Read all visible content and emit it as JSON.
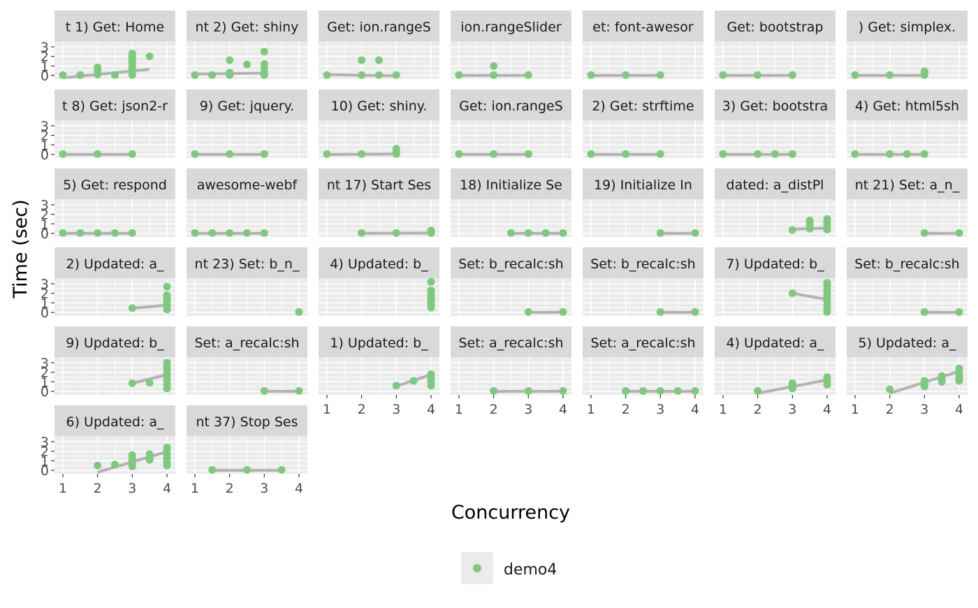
{
  "chart_data": {
    "type": "scatter",
    "xlabel": "Concurrency",
    "ylabel": "Time (sec)",
    "x_ticks": [
      1,
      2,
      3,
      4
    ],
    "y_ticks": [
      0,
      1,
      2,
      3
    ],
    "xlim": [
      1,
      4
    ],
    "ylim": [
      0,
      3
    ],
    "legend": {
      "placement": "bottom",
      "entries": [
        {
          "name": "demo4",
          "color": "#7FC97F"
        }
      ]
    },
    "colors": {
      "point": "#7FC97F",
      "trend": "#B3B3B3",
      "panel_bg": "#EBEBEB",
      "strip_bg": "#D9D9D9"
    },
    "panels": [
      {
        "title": "t 1) Get: Home",
        "points": [
          [
            1,
            0.05
          ],
          [
            1.5,
            0.05
          ],
          [
            2,
            0.1
          ],
          [
            2,
            0.5
          ],
          [
            2,
            0.85
          ],
          [
            2.5,
            0.05
          ],
          [
            3,
            0.05
          ],
          [
            3,
            0.3
          ],
          [
            3,
            0.6
          ],
          [
            3,
            0.9
          ],
          [
            3,
            1.2
          ],
          [
            3,
            1.5
          ],
          [
            3,
            1.8
          ],
          [
            3,
            2.0
          ],
          [
            3,
            2.3
          ],
          [
            3.5,
            2.0
          ]
        ],
        "trend": [
          [
            1,
            -0.25
          ],
          [
            3.5,
            0.65
          ]
        ]
      },
      {
        "title": "nt 2) Get: shiny",
        "points": [
          [
            1,
            0.05
          ],
          [
            1.5,
            0.05
          ],
          [
            2,
            0.05
          ],
          [
            2,
            0.3
          ],
          [
            2,
            1.6
          ],
          [
            2.5,
            1.15
          ],
          [
            3,
            0.05
          ],
          [
            3,
            0.3
          ],
          [
            3,
            0.8
          ],
          [
            3,
            1.2
          ],
          [
            3,
            2.5
          ]
        ],
        "trend": [
          [
            1,
            0.15
          ],
          [
            3,
            0.25
          ]
        ]
      },
      {
        "title": "Get: ion.rangeS",
        "points": [
          [
            1,
            0.05
          ],
          [
            2,
            1.6
          ],
          [
            2,
            0.05
          ],
          [
            2.5,
            1.6
          ],
          [
            2.5,
            0.05
          ],
          [
            3,
            0.05
          ]
        ],
        "trend": [
          [
            1,
            0.1
          ],
          [
            3,
            -0.05
          ]
        ]
      },
      {
        "title": "ion.rangeSlider",
        "points": [
          [
            1,
            0.05
          ],
          [
            2,
            0.05
          ],
          [
            2,
            1.0
          ],
          [
            3,
            0.05
          ]
        ],
        "trend": [
          [
            1,
            0
          ],
          [
            3,
            0
          ]
        ]
      },
      {
        "title": "et: font-awesor",
        "points": [
          [
            1,
            0.05
          ],
          [
            2,
            0.05
          ],
          [
            3,
            0.05
          ]
        ],
        "trend": [
          [
            1,
            0
          ],
          [
            3,
            0
          ]
        ]
      },
      {
        "title": "Get: bootstrap",
        "points": [
          [
            1,
            0.05
          ],
          [
            2,
            0.05
          ],
          [
            3,
            0.05
          ]
        ],
        "trend": [
          [
            1,
            0
          ],
          [
            3,
            0
          ]
        ]
      },
      {
        "title": ") Get: simplex.",
        "points": [
          [
            1,
            0.05
          ],
          [
            2,
            0.05
          ],
          [
            3,
            0.05
          ],
          [
            3,
            0.25
          ],
          [
            3,
            0.45
          ]
        ],
        "trend": [
          [
            1,
            0
          ],
          [
            3,
            0
          ]
        ]
      },
      {
        "title": "t 8) Get: json2-r",
        "points": [
          [
            1,
            0.05
          ],
          [
            2,
            0.05
          ],
          [
            3,
            0.05
          ]
        ],
        "trend": [
          [
            1,
            0
          ],
          [
            3,
            0
          ]
        ]
      },
      {
        "title": "9) Get: jquery.",
        "points": [
          [
            1,
            0.05
          ],
          [
            2,
            0.05
          ],
          [
            3,
            0.05
          ]
        ],
        "trend": [
          [
            1,
            0
          ],
          [
            3,
            0
          ]
        ]
      },
      {
        "title": "10) Get: shiny.",
        "points": [
          [
            1,
            0.05
          ],
          [
            2,
            0.05
          ],
          [
            3,
            0.05
          ],
          [
            3,
            0.3
          ],
          [
            3,
            0.6
          ]
        ],
        "trend": [
          [
            1,
            0
          ],
          [
            3,
            0.05
          ]
        ]
      },
      {
        "title": "Get: ion.rangeS",
        "points": [
          [
            1,
            0.05
          ],
          [
            2,
            0.05
          ],
          [
            3,
            0.05
          ]
        ],
        "trend": [
          [
            1,
            0
          ],
          [
            3,
            0
          ]
        ]
      },
      {
        "title": "2) Get: strftime",
        "points": [
          [
            1,
            0.05
          ],
          [
            2,
            0.05
          ],
          [
            3,
            0.05
          ]
        ],
        "trend": [
          [
            1,
            0
          ],
          [
            3,
            0
          ]
        ]
      },
      {
        "title": "3) Get: bootstra",
        "points": [
          [
            1,
            0.05
          ],
          [
            2,
            0.05
          ],
          [
            2.5,
            0.05
          ],
          [
            3,
            0.05
          ]
        ],
        "trend": [
          [
            1,
            0
          ],
          [
            3,
            0
          ]
        ]
      },
      {
        "title": "4) Get: html5sh",
        "points": [
          [
            1,
            0.05
          ],
          [
            2,
            0.05
          ],
          [
            2.5,
            0.05
          ],
          [
            3,
            0.05
          ]
        ],
        "trend": [
          [
            1,
            0
          ],
          [
            3,
            0
          ]
        ]
      },
      {
        "title": "5) Get: respond",
        "points": [
          [
            1,
            0.05
          ],
          [
            1.5,
            0.05
          ],
          [
            2,
            0.05
          ],
          [
            2.5,
            0.05
          ],
          [
            3,
            0.05
          ]
        ],
        "trend": [
          [
            1,
            0
          ],
          [
            3,
            0
          ]
        ]
      },
      {
        "title": "awesome-webf",
        "points": [
          [
            1,
            0.05
          ],
          [
            1.5,
            0.05
          ],
          [
            2,
            0.05
          ],
          [
            2.5,
            0.05
          ],
          [
            3,
            0.05
          ]
        ],
        "trend": [
          [
            1,
            0
          ],
          [
            3,
            0
          ]
        ]
      },
      {
        "title": "nt 17) Start Ses",
        "points": [
          [
            2,
            0.05
          ],
          [
            3,
            0.05
          ],
          [
            4,
            0.05
          ],
          [
            4,
            0.3
          ]
        ],
        "trend": [
          [
            2,
            0
          ],
          [
            4,
            0.05
          ]
        ]
      },
      {
        "title": "18) Initialize Se",
        "points": [
          [
            2.5,
            0.05
          ],
          [
            3,
            0.05
          ],
          [
            3.5,
            0.05
          ],
          [
            4,
            0.05
          ]
        ],
        "trend": [
          [
            2.5,
            0
          ],
          [
            4,
            0
          ]
        ]
      },
      {
        "title": "19) Initialize In",
        "points": [
          [
            3,
            0.05
          ],
          [
            4,
            0.05
          ]
        ],
        "trend": [
          [
            3,
            0
          ],
          [
            4,
            0
          ]
        ]
      },
      {
        "title": "dated: a_distPl",
        "points": [
          [
            3,
            0.35
          ],
          [
            3.5,
            0.5
          ],
          [
            3.5,
            0.8
          ],
          [
            3.5,
            1.1
          ],
          [
            3.5,
            1.35
          ],
          [
            4,
            0.4
          ],
          [
            4,
            0.8
          ],
          [
            4,
            1.15
          ],
          [
            4,
            1.5
          ]
        ],
        "trend": [
          [
            3,
            0.45
          ],
          [
            4,
            0.55
          ]
        ]
      },
      {
        "title": "nt 21) Set: a_n_",
        "points": [
          [
            3,
            0.05
          ],
          [
            4,
            0.05
          ]
        ],
        "trend": [
          [
            3,
            0
          ],
          [
            4,
            0
          ]
        ]
      },
      {
        "title": "2) Updated: a_",
        "points": [
          [
            3,
            0.45
          ],
          [
            4,
            0.3
          ],
          [
            4,
            0.6
          ],
          [
            4,
            0.9
          ],
          [
            4,
            1.2
          ],
          [
            4,
            1.5
          ],
          [
            4,
            1.8
          ],
          [
            4,
            2.7
          ]
        ],
        "trend": [
          [
            3,
            0.45
          ],
          [
            4,
            0.75
          ]
        ]
      },
      {
        "title": "nt 23) Set: b_n_",
        "points": [
          [
            4,
            0.05
          ]
        ],
        "trend": []
      },
      {
        "title": "4) Updated: b_",
        "points": [
          [
            4,
            0.5
          ],
          [
            4,
            0.8
          ],
          [
            4,
            1.1
          ],
          [
            4,
            1.4
          ],
          [
            4,
            1.7
          ],
          [
            4,
            2.0
          ],
          [
            4,
            2.3
          ],
          [
            4,
            3.2
          ]
        ],
        "trend": []
      },
      {
        "title": "Set: b_recalc:sh",
        "points": [
          [
            3,
            0.05
          ],
          [
            4,
            0.05
          ]
        ],
        "trend": [
          [
            3,
            0
          ],
          [
            4,
            0
          ]
        ]
      },
      {
        "title": "Set: b_recalc:sh",
        "points": [
          [
            3,
            0.05
          ],
          [
            4,
            0.05
          ]
        ],
        "trend": [
          [
            3,
            0
          ],
          [
            4,
            0
          ]
        ]
      },
      {
        "title": "7) Updated: b_",
        "points": [
          [
            3,
            2.0
          ],
          [
            4,
            0.05
          ],
          [
            4,
            0.4
          ],
          [
            4,
            0.8
          ],
          [
            4,
            1.2
          ],
          [
            4,
            1.6
          ],
          [
            4,
            2.0
          ],
          [
            4,
            2.4
          ],
          [
            4,
            2.8
          ],
          [
            4,
            3.1
          ]
        ],
        "trend": [
          [
            3,
            2.0
          ],
          [
            4,
            1.35
          ]
        ]
      },
      {
        "title": "Set: b_recalc:sh",
        "points": [
          [
            3,
            0.05
          ],
          [
            4,
            0.05
          ]
        ],
        "trend": [
          [
            3,
            0
          ],
          [
            4,
            0
          ]
        ]
      },
      {
        "title": "9) Updated: b_",
        "points": [
          [
            3,
            0.85
          ],
          [
            3.5,
            0.9
          ],
          [
            4,
            0.3
          ],
          [
            4,
            0.7
          ],
          [
            4,
            1.1
          ],
          [
            4,
            1.5
          ],
          [
            4,
            1.9
          ],
          [
            4,
            2.3
          ],
          [
            4,
            2.6
          ],
          [
            4,
            3.0
          ]
        ],
        "trend": [
          [
            3,
            0.85
          ],
          [
            4,
            1.75
          ]
        ]
      },
      {
        "title": "Set: a_recalc:sh",
        "points": [
          [
            3,
            0.05
          ],
          [
            4,
            0.05
          ]
        ],
        "trend": [
          [
            3,
            0
          ],
          [
            4,
            0
          ]
        ]
      },
      {
        "title": "1) Updated: b_",
        "points": [
          [
            3,
            0.6
          ],
          [
            3.5,
            1.1
          ],
          [
            4,
            0.6
          ],
          [
            4,
            1.0
          ],
          [
            4,
            1.4
          ],
          [
            4,
            1.8
          ]
        ],
        "trend": [
          [
            3,
            0.55
          ],
          [
            4,
            1.75
          ]
        ]
      },
      {
        "title": "Set: a_recalc:sh",
        "points": [
          [
            2,
            0.05
          ],
          [
            3,
            0.05
          ],
          [
            4,
            0.05
          ]
        ],
        "trend": [
          [
            2,
            0
          ],
          [
            4,
            0
          ]
        ]
      },
      {
        "title": "Set: a_recalc:sh",
        "points": [
          [
            2,
            0.05
          ],
          [
            2.5,
            0.05
          ],
          [
            3,
            0.05
          ],
          [
            3.5,
            0.05
          ],
          [
            4,
            0.05
          ]
        ],
        "trend": [
          [
            2,
            0
          ],
          [
            4,
            0
          ]
        ]
      },
      {
        "title": "4) Updated: a_",
        "points": [
          [
            2,
            0.05
          ],
          [
            3,
            0.3
          ],
          [
            3,
            0.6
          ],
          [
            3,
            0.85
          ],
          [
            4,
            0.7
          ],
          [
            4,
            1.1
          ],
          [
            4,
            1.5
          ]
        ],
        "trend": [
          [
            2,
            -0.2
          ],
          [
            4,
            1.2
          ]
        ]
      },
      {
        "title": "5) Updated: a_",
        "points": [
          [
            2,
            0.2
          ],
          [
            3,
            0.5
          ],
          [
            3,
            0.8
          ],
          [
            3,
            1.1
          ],
          [
            3.5,
            1.0
          ],
          [
            3.5,
            1.3
          ],
          [
            3.5,
            1.6
          ],
          [
            4,
            1.1
          ],
          [
            4,
            1.4
          ],
          [
            4,
            1.7
          ],
          [
            4,
            2.0
          ],
          [
            4,
            2.4
          ]
        ],
        "trend": [
          [
            2,
            -0.2
          ],
          [
            4,
            2.1
          ]
        ]
      },
      {
        "title": "6) Updated: a_",
        "points": [
          [
            2,
            0.5
          ],
          [
            2.5,
            0.6
          ],
          [
            3,
            0.4
          ],
          [
            3,
            0.7
          ],
          [
            3,
            1.0
          ],
          [
            3,
            1.3
          ],
          [
            3,
            1.6
          ],
          [
            3.5,
            1.1
          ],
          [
            3.5,
            1.4
          ],
          [
            3.5,
            1.7
          ],
          [
            4,
            0.5
          ],
          [
            4,
            0.9
          ],
          [
            4,
            1.3
          ],
          [
            4,
            1.7
          ],
          [
            4,
            2.1
          ],
          [
            4,
            2.4
          ]
        ],
        "trend": [
          [
            2,
            -0.2
          ],
          [
            4,
            1.95
          ]
        ]
      },
      {
        "title": "nt 37) Stop Ses",
        "points": [
          [
            1.5,
            0.05
          ],
          [
            2.5,
            0.05
          ],
          [
            3.5,
            0.05
          ]
        ],
        "trend": [
          [
            1.5,
            0
          ],
          [
            3.5,
            0
          ]
        ]
      }
    ]
  }
}
